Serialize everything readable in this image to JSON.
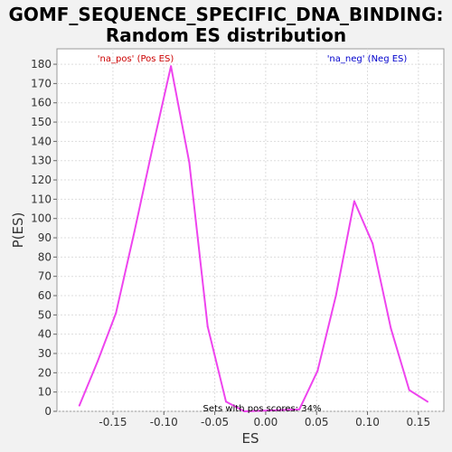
{
  "chart_data": {
    "type": "line",
    "title_line1": "GOMF_SEQUENCE_SPECIFIC_DNA_BINDING:",
    "title_line2": "Random ES distribution",
    "xlabel": "ES",
    "ylabel": "P(ES)",
    "xlim": [
      -0.205,
      0.175
    ],
    "ylim": [
      0,
      188
    ],
    "xticks": [
      -0.15,
      -0.1,
      -0.05,
      0.0,
      0.05,
      0.1,
      0.15
    ],
    "xtick_labels": [
      "-0.15",
      "-0.10",
      "-0.05",
      "0.00",
      "0.05",
      "0.10",
      "0.15"
    ],
    "yticks": [
      0,
      10,
      20,
      30,
      40,
      50,
      60,
      70,
      80,
      90,
      100,
      110,
      120,
      130,
      140,
      150,
      160,
      170,
      180
    ],
    "grid": true,
    "legend": {
      "pos_label": "'na_pos' (Pos ES)",
      "neg_label": "'na_neg' (Neg ES)"
    },
    "annotation": "Sets with pos scores: 34%",
    "line_color": "#ee44ee",
    "series": [
      {
        "x": [
          -0.183,
          -0.165,
          -0.147,
          -0.129,
          -0.111,
          -0.093,
          -0.075,
          -0.057,
          -0.039,
          -0.021,
          0.033,
          0.051,
          0.069,
          0.087,
          0.105,
          0.123,
          0.141,
          0.159
        ],
        "y": [
          3,
          26,
          51,
          93,
          137,
          179,
          129,
          44,
          5,
          0,
          1,
          21,
          60,
          109,
          87,
          43,
          11,
          5
        ]
      }
    ]
  }
}
